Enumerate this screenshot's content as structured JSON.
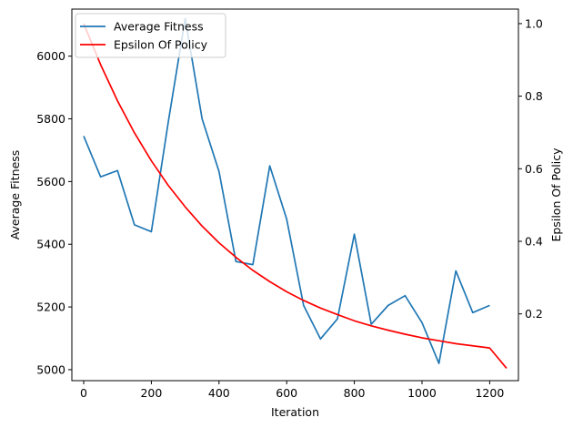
{
  "chart_data": {
    "type": "line",
    "xlabel": "Iteration",
    "ylabel_left": "Average Fitness",
    "ylabel_right": "Epsilon Of Policy",
    "xlim": [
      -35,
      1285
    ],
    "ylim_left": [
      4965,
      6150
    ],
    "ylim_right": [
      0.016,
      1.04
    ],
    "x_ticks": [
      0,
      200,
      400,
      600,
      800,
      1000,
      1200
    ],
    "y_ticks_left": [
      5000,
      5200,
      5400,
      5600,
      5800,
      6000
    ],
    "y_ticks_right": [
      0.2,
      0.4,
      0.6,
      0.8,
      1.0
    ],
    "y_tick_labels_right": [
      "0.2",
      "0.4",
      "0.6",
      "0.8",
      "1.0"
    ],
    "grid": false,
    "legend_position": "top-left",
    "series": [
      {
        "name": "Average Fitness",
        "axis": "left",
        "color": "#1f77b4",
        "x": [
          0,
          50,
          100,
          150,
          200,
          250,
          300,
          350,
          400,
          450,
          500,
          550,
          600,
          650,
          700,
          750,
          800,
          850,
          900,
          950,
          1000,
          1050,
          1100,
          1150,
          1200
        ],
        "values": [
          5745,
          5615,
          5635,
          5462,
          5440,
          5790,
          6120,
          5800,
          5632,
          5345,
          5335,
          5650,
          5480,
          5205,
          5098,
          5162,
          5432,
          5145,
          5205,
          5236,
          5150,
          5020,
          5315,
          5182,
          5205
        ]
      },
      {
        "name": "Epsilon Of Policy",
        "axis": "right",
        "color": "#ff0000",
        "x": [
          0,
          50,
          100,
          150,
          200,
          250,
          300,
          350,
          400,
          450,
          500,
          550,
          600,
          650,
          700,
          750,
          800,
          850,
          900,
          950,
          1000,
          1050,
          1100,
          1150,
          1200,
          1250
        ],
        "values": [
          1.0,
          0.887,
          0.787,
          0.699,
          0.622,
          0.554,
          0.495,
          0.442,
          0.396,
          0.356,
          0.32,
          0.289,
          0.261,
          0.237,
          0.216,
          0.198,
          0.181,
          0.167,
          0.155,
          0.144,
          0.134,
          0.126,
          0.118,
          0.112,
          0.106,
          0.05
        ]
      }
    ]
  }
}
